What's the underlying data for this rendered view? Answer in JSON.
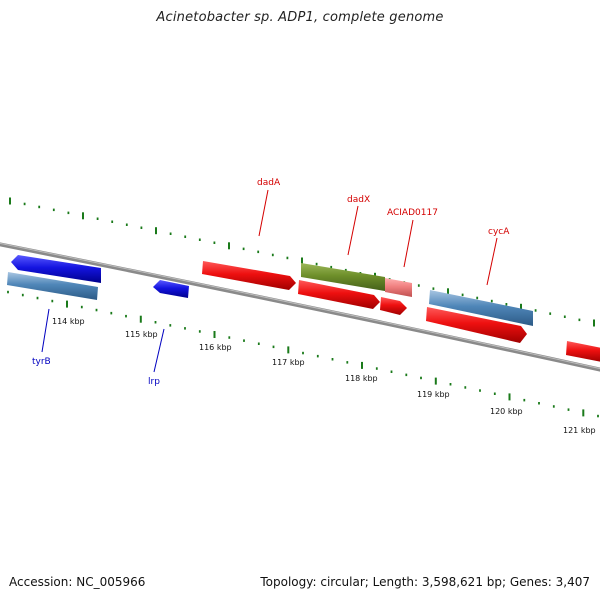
{
  "title": "Acinetobacter sp. ADP1, complete genome",
  "footer": {
    "accession": "Accession: NC_005966",
    "summary": "Topology: circular; Length: 3,598,621 bp; Genes: 3,407"
  },
  "scale_labels": [
    "114 kbp",
    "115 kbp",
    "116 kbp",
    "117 kbp",
    "118 kbp",
    "119 kbp",
    "120 kbp",
    "121 kbp"
  ],
  "gene_labels": [
    {
      "name": "dadA",
      "strand": "forward",
      "color": "#d40000"
    },
    {
      "name": "dadX",
      "strand": "forward",
      "color": "#d40000"
    },
    {
      "name": "ACIAD0117",
      "strand": "forward",
      "color": "#d40000"
    },
    {
      "name": "cycA",
      "strand": "forward",
      "color": "#d40000"
    },
    {
      "name": "tyrB",
      "strand": "reverse",
      "color": "#0000c0"
    },
    {
      "name": "lrp",
      "strand": "reverse",
      "color": "#0000c0"
    }
  ],
  "colors": {
    "backbone": "#8a8a8a",
    "tick": "#1a7a1a",
    "forward_gene": "#ee1111",
    "reverse_gene": "#1515e0",
    "cds_blue": "#4f86b8",
    "cds_green": "#6e8f2a",
    "cds_pink": "#f08080"
  }
}
